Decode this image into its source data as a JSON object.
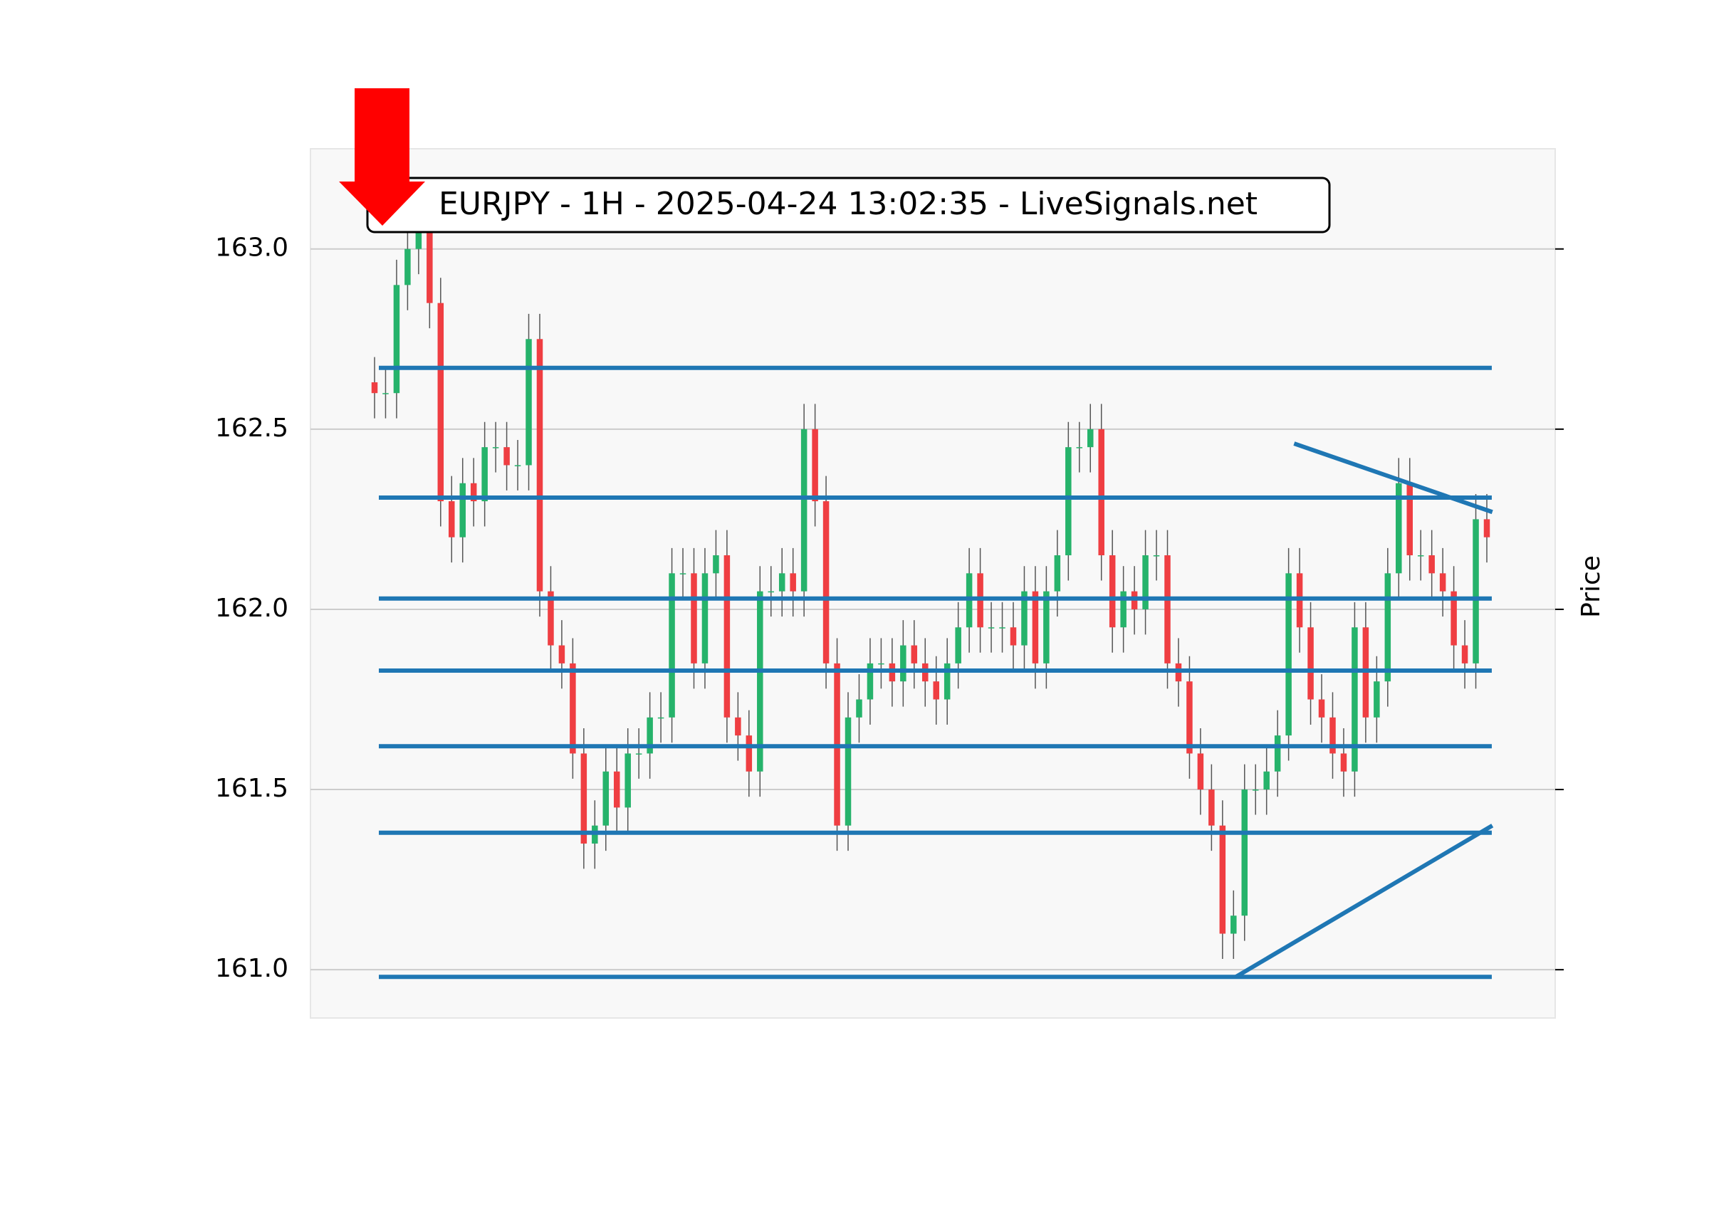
{
  "chart_data": {
    "type": "candlestick",
    "title": "EURJPY - 1H - 2025-04-24 13:02:35 - LiveSignals.net",
    "y_label": "Price",
    "ylim": [
      160.866,
      163.278
    ],
    "yticks": [
      {
        "value": 161,
        "label": "161.0"
      },
      161.5,
      {
        "value": 162,
        "label": "162.0"
      },
      162.5,
      {
        "value": 163,
        "label": "163.0"
      }
    ],
    "grid": true,
    "up_color": "#26b36b",
    "down_color": "#ef3e42",
    "wick_color": "#555555",
    "line_color": "#1f77b4",
    "open": [
      162.63,
      162.6,
      162.6,
      162.9,
      163.0,
      163.05,
      162.85,
      162.3,
      162.2,
      162.35,
      162.3,
      162.45,
      162.45,
      162.4,
      162.4,
      162.75,
      162.05,
      161.9,
      161.85,
      161.6,
      161.35,
      161.4,
      161.55,
      161.45,
      161.6,
      161.6,
      161.7,
      161.7,
      162.1,
      162.1,
      161.85,
      162.1,
      162.15,
      161.7,
      161.65,
      161.55,
      162.05,
      162.05,
      162.1,
      162.05,
      162.5,
      162.3,
      161.85,
      161.4,
      161.7,
      161.75,
      161.85,
      161.85,
      161.8,
      161.9,
      161.85,
      161.8,
      161.75,
      161.85,
      161.95,
      162.1,
      161.95,
      161.95,
      161.95,
      161.9,
      162.05,
      161.85,
      162.05,
      162.15,
      162.45,
      162.45,
      162.5,
      162.15,
      161.95,
      162.05,
      162.0,
      162.15,
      162.15,
      161.85,
      161.8,
      161.6,
      161.5,
      161.4,
      161.1,
      161.15,
      161.5,
      161.5,
      161.55,
      161.65,
      162.1,
      161.95,
      161.75,
      161.7,
      161.6,
      161.55,
      161.95,
      161.7,
      161.8,
      162.1,
      162.35,
      162.15,
      162.15,
      162.1,
      162.05,
      161.9,
      161.85,
      162.25
    ],
    "high": [
      162.7,
      162.67,
      162.97,
      163.07,
      163.12,
      163.12,
      162.92,
      162.37,
      162.42,
      162.42,
      162.52,
      162.52,
      162.52,
      162.47,
      162.82,
      162.82,
      162.12,
      161.97,
      161.92,
      161.67,
      161.47,
      161.62,
      161.62,
      161.67,
      161.67,
      161.77,
      161.77,
      162.17,
      162.17,
      162.17,
      162.17,
      162.22,
      162.22,
      161.77,
      161.72,
      162.12,
      162.12,
      162.17,
      162.17,
      162.57,
      162.57,
      162.37,
      161.92,
      161.77,
      161.82,
      161.92,
      161.92,
      161.92,
      161.97,
      161.97,
      161.92,
      161.87,
      161.92,
      162.02,
      162.17,
      162.17,
      162.02,
      162.02,
      162.02,
      162.12,
      162.12,
      162.12,
      162.22,
      162.52,
      162.52,
      162.57,
      162.57,
      162.22,
      162.12,
      162.12,
      162.22,
      162.22,
      162.22,
      161.92,
      161.87,
      161.67,
      161.57,
      161.47,
      161.22,
      161.57,
      161.57,
      161.62,
      161.72,
      162.17,
      162.17,
      162.02,
      161.82,
      161.77,
      161.67,
      162.02,
      162.02,
      161.87,
      162.17,
      162.42,
      162.42,
      162.22,
      162.22,
      162.17,
      162.12,
      161.97,
      162.32,
      162.32
    ],
    "low": [
      162.53,
      162.53,
      162.53,
      162.83,
      162.93,
      162.78,
      162.23,
      162.13,
      162.13,
      162.23,
      162.23,
      162.38,
      162.33,
      162.33,
      162.33,
      161.98,
      161.83,
      161.78,
      161.53,
      161.28,
      161.28,
      161.33,
      161.38,
      161.38,
      161.53,
      161.53,
      161.63,
      161.63,
      162.03,
      161.78,
      161.78,
      162.03,
      161.63,
      161.58,
      161.48,
      161.48,
      161.98,
      161.98,
      161.98,
      161.98,
      162.23,
      161.78,
      161.33,
      161.33,
      161.63,
      161.68,
      161.78,
      161.73,
      161.73,
      161.78,
      161.73,
      161.68,
      161.68,
      161.78,
      161.88,
      161.88,
      161.88,
      161.88,
      161.83,
      161.83,
      161.78,
      161.78,
      161.98,
      162.08,
      162.38,
      162.38,
      162.08,
      161.88,
      161.88,
      161.93,
      161.93,
      162.08,
      161.78,
      161.73,
      161.53,
      161.43,
      161.33,
      161.03,
      161.03,
      161.08,
      161.43,
      161.43,
      161.48,
      161.58,
      161.88,
      161.68,
      161.63,
      161.53,
      161.48,
      161.48,
      161.63,
      161.63,
      161.73,
      162.03,
      162.08,
      162.08,
      162.03,
      161.98,
      161.83,
      161.78,
      161.78,
      162.13
    ],
    "close": [
      162.6,
      162.6,
      162.9,
      163.0,
      163.05,
      162.85,
      162.3,
      162.2,
      162.35,
      162.3,
      162.45,
      162.45,
      162.4,
      162.4,
      162.75,
      162.05,
      161.9,
      161.85,
      161.6,
      161.35,
      161.4,
      161.55,
      161.45,
      161.6,
      161.6,
      161.7,
      161.7,
      162.1,
      162.1,
      161.85,
      162.1,
      162.15,
      161.7,
      161.65,
      161.55,
      162.05,
      162.05,
      162.1,
      162.05,
      162.5,
      162.3,
      161.85,
      161.4,
      161.7,
      161.75,
      161.85,
      161.85,
      161.8,
      161.9,
      161.85,
      161.8,
      161.75,
      161.85,
      161.95,
      162.1,
      161.95,
      161.95,
      161.95,
      161.9,
      162.05,
      161.85,
      162.05,
      162.15,
      162.45,
      162.45,
      162.5,
      162.15,
      161.95,
      162.05,
      162.0,
      162.15,
      162.15,
      161.85,
      161.8,
      161.6,
      161.5,
      161.4,
      161.1,
      161.15,
      161.5,
      161.5,
      161.55,
      161.65,
      162.1,
      161.95,
      161.75,
      161.7,
      161.6,
      161.55,
      161.95,
      161.7,
      161.8,
      162.1,
      162.35,
      162.15,
      162.15,
      162.1,
      162.05,
      161.9,
      161.85,
      162.25,
      162.2
    ],
    "hlines": [
      162.67,
      162.31,
      162.03,
      161.83,
      161.62,
      161.38,
      160.98
    ],
    "trendlines": [
      {
        "x": [
          83.5,
          101.5
        ],
        "y": [
          162.46,
          162.27
        ]
      },
      {
        "x": [
          78.2,
          101.5
        ],
        "y": [
          160.98,
          161.4
        ]
      }
    ]
  }
}
